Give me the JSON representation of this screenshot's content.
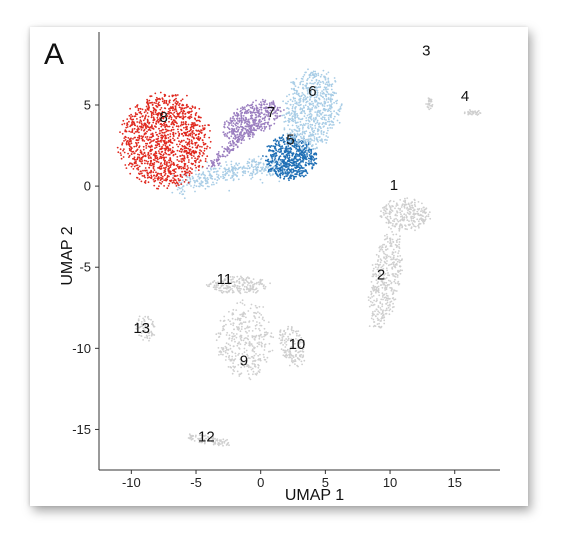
{
  "panel_label": "A",
  "chart_data": {
    "type": "scatter",
    "xlabel": "UMAP 1",
    "ylabel": "UMAP 2",
    "xlim": [
      -12.5,
      18.5
    ],
    "ylim": [
      -17.5,
      9.5
    ],
    "x_ticks": [
      -10,
      -5,
      0,
      5,
      10,
      15
    ],
    "y_ticks": [
      5,
      0,
      -5,
      -10,
      -15
    ],
    "grid": false,
    "colors": {
      "gray": "#cfcfcf",
      "red": "#e0291f",
      "purple": "#9b7fc0",
      "light_blue": "#a9cde6",
      "dark_blue": "#1f6fb5"
    },
    "clusters": [
      {
        "label": "1",
        "x": 10.3,
        "y": 0.0,
        "color": "gray"
      },
      {
        "label": "2",
        "x": 9.3,
        "y": -5.5,
        "color": "gray"
      },
      {
        "label": "3",
        "x": 12.8,
        "y": 8.3,
        "color": "gray"
      },
      {
        "label": "4",
        "x": 15.8,
        "y": 5.5,
        "color": "gray"
      },
      {
        "label": "5",
        "x": 2.3,
        "y": 2.8,
        "color": "dark_blue"
      },
      {
        "label": "6",
        "x": 4.0,
        "y": 5.8,
        "color": "light_blue"
      },
      {
        "label": "7",
        "x": 0.8,
        "y": 4.5,
        "color": "purple"
      },
      {
        "label": "8",
        "x": -7.5,
        "y": 4.2,
        "color": "red"
      },
      {
        "label": "9",
        "x": -1.3,
        "y": -10.8,
        "color": "gray"
      },
      {
        "label": "10",
        "x": 2.8,
        "y": -9.8,
        "color": "gray"
      },
      {
        "label": "11",
        "x": -2.8,
        "y": -5.8,
        "color": "gray"
      },
      {
        "label": "12",
        "x": -4.2,
        "y": -15.5,
        "color": "gray"
      },
      {
        "label": "13",
        "x": -9.2,
        "y": -8.8,
        "color": "gray"
      }
    ]
  }
}
